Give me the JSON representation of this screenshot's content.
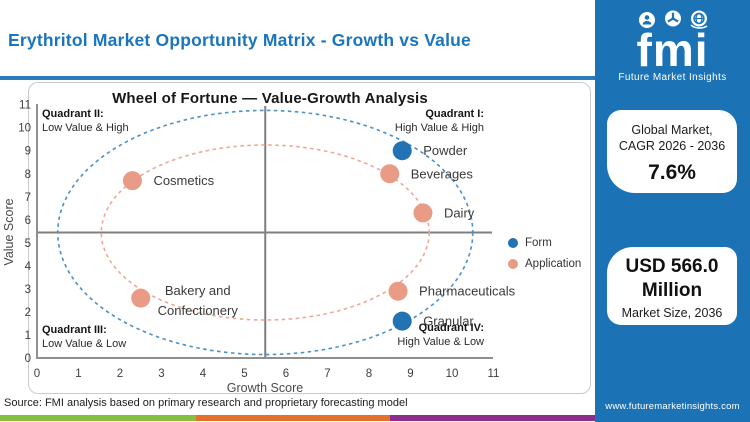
{
  "header": {
    "title": "Erythritol Market Opportunity Matrix - Growth vs Value"
  },
  "brand": {
    "logo_text": "fmi",
    "logo_tagline": "Future Market Insights",
    "website": "www.futuremarketinsights.com"
  },
  "side_panel": {
    "cagr_card": {
      "line1": "Global Market,",
      "line2": "CAGR 2026 - 2036",
      "value": "7.6%"
    },
    "size_card": {
      "value": "USD 566.0 Million",
      "label": "Market Size, 2036"
    }
  },
  "chart": {
    "quadrants": [
      {
        "name": "Quadrant II:",
        "desc": "Low Value & High"
      },
      {
        "name": "Quadrant I:",
        "desc": "High Value & High"
      },
      {
        "name": "Quadrant III:",
        "desc": "Low Value & Low"
      },
      {
        "name": "Quadrant IV:",
        "desc": "High Value & Low"
      }
    ]
  },
  "chart_data": {
    "type": "scatter",
    "title": "Wheel of Fortune — Value-Growth Analysis",
    "xlabel": "Growth Score",
    "ylabel": "Value Score",
    "xlim": [
      0,
      11
    ],
    "ylim": [
      0,
      11
    ],
    "xticks": [
      0,
      1,
      2,
      3,
      4,
      5,
      6,
      7,
      8,
      9,
      10,
      11
    ],
    "yticks": [
      0,
      1,
      2,
      3,
      4,
      5,
      6,
      7,
      8,
      9,
      10,
      11
    ],
    "grid": false,
    "legend_position": "right",
    "quadrant_divider": {
      "x": 5.5,
      "y": 5.45
    },
    "rings_center": {
      "x": 5.5,
      "y": 5.45
    },
    "series": [
      {
        "name": "Form",
        "color": "#2273b4",
        "ring": {
          "rx": 5.0,
          "ry": 5.3,
          "color": "#4a90c9"
        },
        "points": [
          {
            "label": "Powder",
            "x": 8.8,
            "y": 9.0
          },
          {
            "label": "Granular",
            "x": 8.8,
            "y": 1.6
          }
        ]
      },
      {
        "name": "Application",
        "color": "#e99b85",
        "ring": {
          "rx": 3.95,
          "ry": 3.8,
          "color": "#eda893"
        },
        "points": [
          {
            "label": "Cosmetics",
            "x": 2.3,
            "y": 7.7
          },
          {
            "label": "Beverages",
            "x": 8.5,
            "y": 8.0
          },
          {
            "label": "Dairy",
            "x": 9.3,
            "y": 6.3
          },
          {
            "label": "Bakery and\nConfectionery",
            "x": 2.5,
            "y": 2.6
          },
          {
            "label": "Pharmaceuticals",
            "x": 8.7,
            "y": 2.9
          }
        ]
      }
    ]
  },
  "footer": {
    "source": "Source: FMI analysis based on primary research and proprietary forecasting model"
  },
  "colors": {
    "accent_blue": "#1b75bc",
    "panel_blue": "#1b73b6",
    "form_blue": "#2273b4",
    "application_coral": "#e99b85",
    "stripe_green": "#85bf41",
    "stripe_orange": "#e5702a",
    "stripe_purple": "#8e2c8b"
  }
}
